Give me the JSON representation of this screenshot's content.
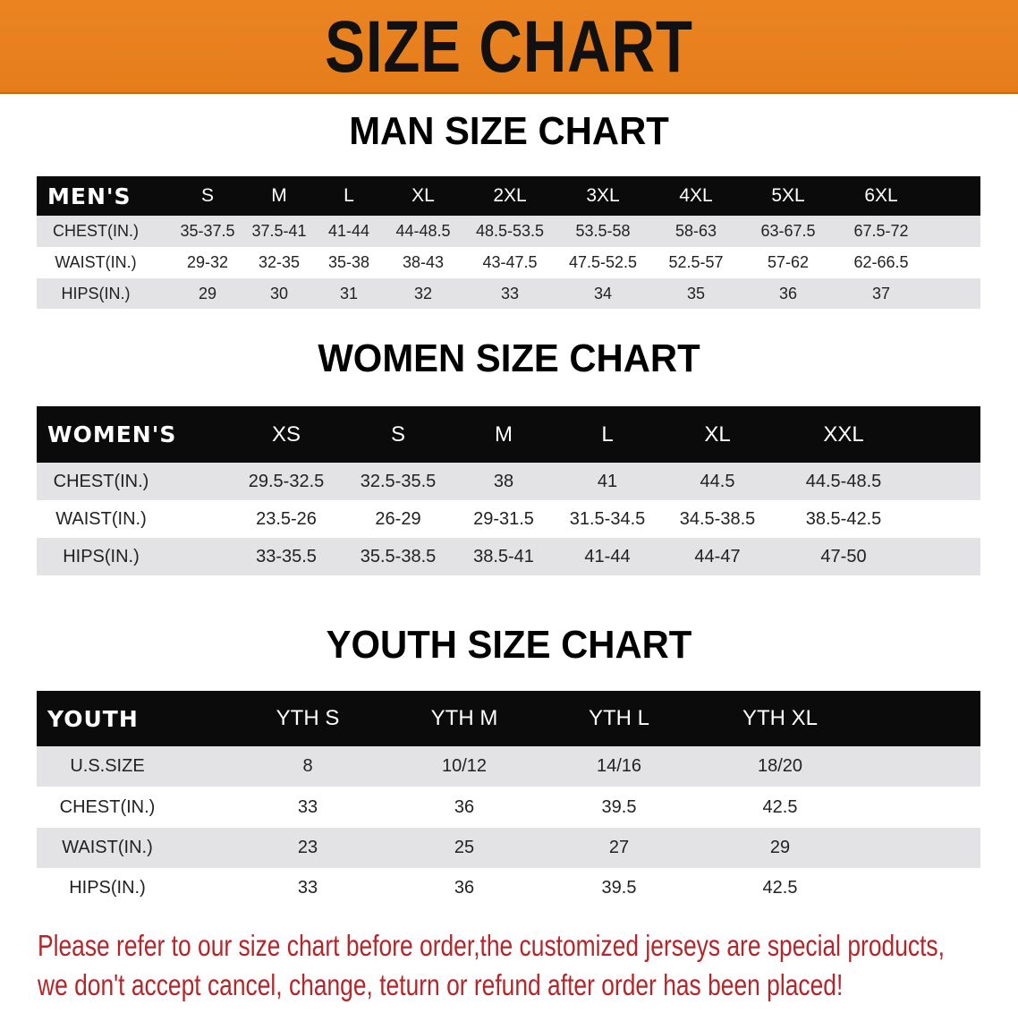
{
  "banner_title": "SIZE CHART",
  "colors": {
    "banner": "#e8811f",
    "header_row": "#0b0b0b",
    "shaded_row": "#e3e3e5",
    "note": "#b3262a"
  },
  "men": {
    "title": "MAN SIZE CHART",
    "header": [
      "MEN'S",
      "S",
      "M",
      "L",
      "XL",
      "2XL",
      "3XL",
      "4XL",
      "5XL",
      "6XL"
    ],
    "rows": [
      [
        "CHEST(IN.)",
        "35-37.5",
        "37.5-41",
        "41-44",
        "44-48.5",
        "48.5-53.5",
        "53.5-58",
        "58-63",
        "63-67.5",
        "67.5-72"
      ],
      [
        "WAIST(IN.)",
        "29-32",
        "32-35",
        "35-38",
        "38-43",
        "43-47.5",
        "47.5-52.5",
        "52.5-57",
        "57-62",
        "62-66.5"
      ],
      [
        "HIPS(IN.)",
        "29",
        "30",
        "31",
        "32",
        "33",
        "34",
        "35",
        "36",
        "37"
      ]
    ]
  },
  "women": {
    "title": "WOMEN SIZE CHART",
    "header": [
      "WOMEN'S",
      "XS",
      "S",
      "M",
      "L",
      "XL",
      "XXL"
    ],
    "rows": [
      [
        "CHEST(IN.)",
        "29.5-32.5",
        "32.5-35.5",
        "38",
        "41",
        "44.5",
        "44.5-48.5"
      ],
      [
        "WAIST(IN.)",
        "23.5-26",
        "26-29",
        "29-31.5",
        "31.5-34.5",
        "34.5-38.5",
        "38.5-42.5"
      ],
      [
        "HIPS(IN.)",
        "33-35.5",
        "35.5-38.5",
        "38.5-41",
        "41-44",
        "44-47",
        "47-50"
      ]
    ]
  },
  "youth": {
    "title": "YOUTH SIZE CHART",
    "header": [
      "YOUTH",
      "YTH S",
      "YTH M",
      "YTH L",
      "YTH XL"
    ],
    "rows": [
      [
        "U.S.SIZE",
        "8",
        "10/12",
        "14/16",
        "18/20"
      ],
      [
        "CHEST(IN.)",
        "33",
        "36",
        "39.5",
        "42.5"
      ],
      [
        "WAIST(IN.)",
        "23",
        "25",
        "27",
        "29"
      ],
      [
        "HIPS(IN.)",
        "33",
        "36",
        "39.5",
        "42.5"
      ]
    ]
  },
  "note": {
    "line1": "Please refer to our size chart before order,the customized jerseys are special products,",
    "line2": "we don't accept cancel, change, teturn or refund after order has been placed!"
  }
}
